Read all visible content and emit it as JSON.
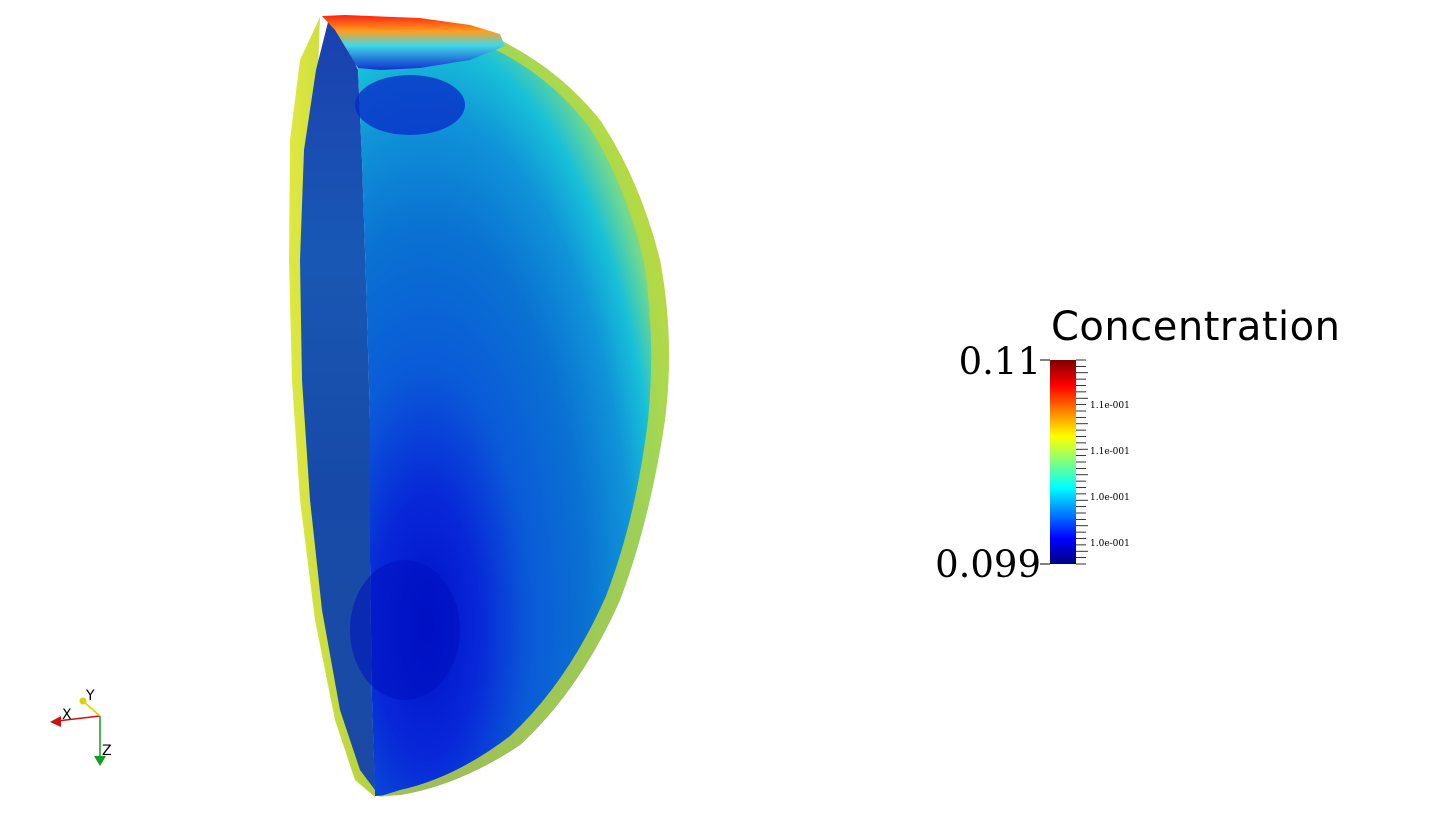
{
  "scalar_bar": {
    "title": "Concentration",
    "max_label": "0.11",
    "min_label": "0.099",
    "tick_labels": [
      "1.1e-001",
      "1.1e-001",
      "1.0e-001",
      "1.0e-001"
    ],
    "colormap": [
      "#00007f",
      "#0000ff",
      "#0080ff",
      "#00ffff",
      "#80ff80",
      "#ffff00",
      "#ff8000",
      "#ff0000",
      "#7f0000"
    ]
  },
  "orientation_axes": {
    "x_label": "X",
    "y_label": "Y",
    "z_label": "Z",
    "x_color": "#d01010",
    "y_color": "#e0d000",
    "z_color": "#10a020"
  }
}
